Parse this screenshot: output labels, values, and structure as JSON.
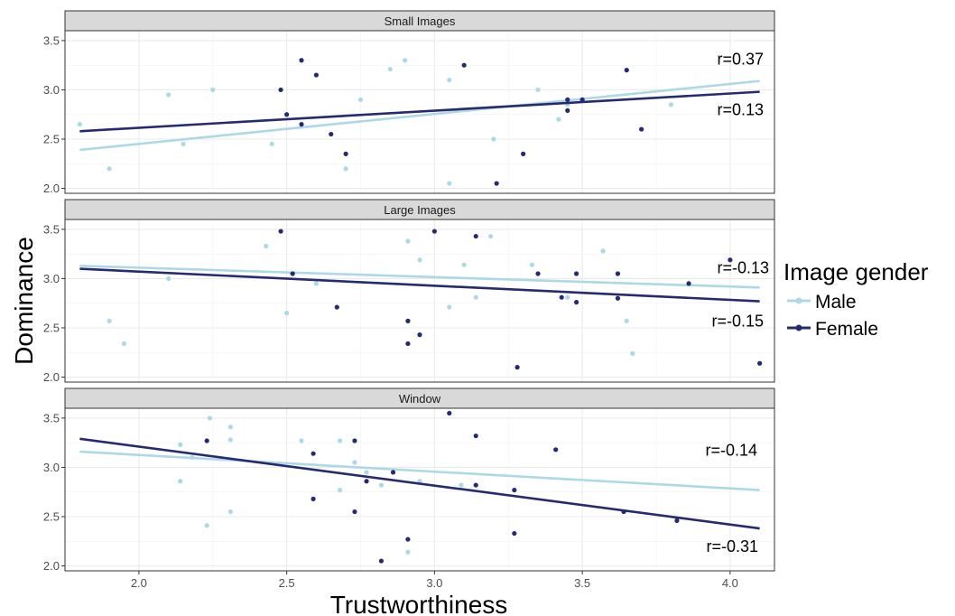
{
  "colors": {
    "Male": "#add8e6",
    "Female": "#262a70"
  },
  "chart_data": {
    "type": "scatter",
    "xlabel": "Trustworthiness",
    "ylabel": "Dominance",
    "xlim": [
      1.75,
      4.15
    ],
    "x_ticks": [
      "2.0",
      "2.5",
      "3.0",
      "3.5",
      "4.0"
    ],
    "y_ticks": [
      "2.0",
      "2.5",
      "3.0",
      "3.5"
    ],
    "grid": true,
    "legend": {
      "title": "Image gender",
      "position": "right",
      "items": [
        {
          "name": "Male",
          "color": "#add8e6"
        },
        {
          "name": "Female",
          "color": "#262a70"
        }
      ]
    },
    "facets": [
      {
        "title": "Small Images",
        "ylim": [
          1.95,
          3.6
        ],
        "series": [
          {
            "name": "Male",
            "points": [
              [
                1.8,
                2.65
              ],
              [
                1.9,
                2.2
              ],
              [
                2.1,
                2.95
              ],
              [
                2.15,
                2.45
              ],
              [
                2.25,
                3.0
              ],
              [
                2.45,
                2.45
              ],
              [
                2.7,
                2.2
              ],
              [
                2.75,
                2.9
              ],
              [
                2.85,
                3.21
              ],
              [
                2.9,
                3.3
              ],
              [
                3.05,
                3.1
              ],
              [
                3.05,
                2.05
              ],
              [
                3.2,
                2.5
              ],
              [
                3.35,
                3.0
              ],
              [
                3.42,
                2.7
              ],
              [
                3.45,
                2.85
              ],
              [
                3.8,
                2.85
              ]
            ],
            "trend": [
              [
                1.8,
                2.39
              ],
              [
                4.1,
                3.09
              ]
            ],
            "r_label": "r=0.37"
          },
          {
            "name": "Female",
            "points": [
              [
                2.48,
                3.0
              ],
              [
                2.5,
                2.75
              ],
              [
                2.55,
                2.65
              ],
              [
                2.55,
                3.3
              ],
              [
                2.6,
                3.15
              ],
              [
                2.65,
                2.55
              ],
              [
                2.7,
                2.35
              ],
              [
                3.1,
                3.25
              ],
              [
                3.21,
                2.05
              ],
              [
                3.3,
                2.35
              ],
              [
                3.45,
                2.9
              ],
              [
                3.45,
                2.79
              ],
              [
                3.5,
                2.9
              ],
              [
                3.65,
                3.2
              ],
              [
                3.7,
                2.6
              ]
            ],
            "trend": [
              [
                1.8,
                2.58
              ],
              [
                4.1,
                2.98
              ]
            ],
            "r_label": "r=0.13"
          }
        ]
      },
      {
        "title": "Large Images",
        "ylim": [
          1.95,
          3.6
        ],
        "series": [
          {
            "name": "Male",
            "points": [
              [
                1.9,
                2.57
              ],
              [
                1.95,
                2.34
              ],
              [
                2.1,
                3.0
              ],
              [
                2.43,
                3.33
              ],
              [
                2.5,
                2.65
              ],
              [
                2.6,
                2.95
              ],
              [
                2.91,
                3.38
              ],
              [
                2.95,
                3.19
              ],
              [
                3.05,
                2.71
              ],
              [
                3.1,
                3.14
              ],
              [
                3.14,
                2.81
              ],
              [
                3.19,
                3.43
              ],
              [
                3.33,
                3.14
              ],
              [
                3.45,
                2.81
              ],
              [
                3.57,
                3.28
              ],
              [
                3.65,
                2.57
              ],
              [
                3.67,
                2.24
              ]
            ],
            "trend": [
              [
                1.8,
                3.13
              ],
              [
                4.1,
                2.91
              ]
            ],
            "r_label": "r=-0.13"
          },
          {
            "name": "Female",
            "points": [
              [
                2.48,
                3.48
              ],
              [
                2.52,
                3.05
              ],
              [
                2.67,
                2.71
              ],
              [
                2.91,
                2.57
              ],
              [
                2.91,
                2.34
              ],
              [
                2.95,
                2.43
              ],
              [
                3.0,
                3.48
              ],
              [
                3.14,
                3.43
              ],
              [
                3.28,
                2.1
              ],
              [
                3.35,
                3.05
              ],
              [
                3.43,
                2.81
              ],
              [
                3.48,
                3.05
              ],
              [
                3.48,
                2.76
              ],
              [
                3.62,
                3.05
              ],
              [
                3.62,
                2.8
              ],
              [
                3.86,
                2.95
              ],
              [
                4.0,
                3.19
              ],
              [
                4.1,
                2.14
              ]
            ],
            "trend": [
              [
                1.8,
                3.1
              ],
              [
                4.1,
                2.77
              ]
            ],
            "r_label": "r=-0.15"
          }
        ]
      },
      {
        "title": "Window",
        "ylim": [
          1.95,
          3.6
        ],
        "series": [
          {
            "name": "Male",
            "points": [
              [
                2.14,
                3.23
              ],
              [
                2.14,
                2.86
              ],
              [
                2.18,
                3.1
              ],
              [
                2.23,
                2.41
              ],
              [
                2.24,
                3.5
              ],
              [
                2.31,
                3.41
              ],
              [
                2.31,
                3.28
              ],
              [
                2.31,
                2.55
              ],
              [
                2.55,
                3.27
              ],
              [
                2.68,
                3.27
              ],
              [
                2.68,
                2.77
              ],
              [
                2.73,
                3.05
              ],
              [
                2.77,
                2.95
              ],
              [
                2.82,
                2.82
              ],
              [
                2.95,
                2.86
              ],
              [
                3.09,
                2.82
              ],
              [
                2.91,
                2.14
              ]
            ],
            "trend": [
              [
                1.8,
                3.16
              ],
              [
                4.1,
                2.77
              ]
            ],
            "r_label": "r=-0.14"
          },
          {
            "name": "Female",
            "points": [
              [
                2.23,
                3.27
              ],
              [
                2.59,
                3.14
              ],
              [
                2.59,
                2.68
              ],
              [
                2.73,
                3.27
              ],
              [
                2.73,
                2.55
              ],
              [
                2.77,
                2.86
              ],
              [
                2.82,
                2.05
              ],
              [
                2.86,
                2.95
              ],
              [
                2.91,
                2.27
              ],
              [
                3.05,
                3.55
              ],
              [
                3.14,
                3.32
              ],
              [
                3.14,
                2.82
              ],
              [
                3.27,
                2.77
              ],
              [
                3.27,
                2.33
              ],
              [
                3.41,
                3.18
              ],
              [
                3.64,
                2.55
              ],
              [
                3.82,
                2.46
              ]
            ],
            "trend": [
              [
                1.8,
                3.29
              ],
              [
                4.1,
                2.38
              ]
            ],
            "r_label": "r=-0.31"
          }
        ]
      }
    ]
  }
}
